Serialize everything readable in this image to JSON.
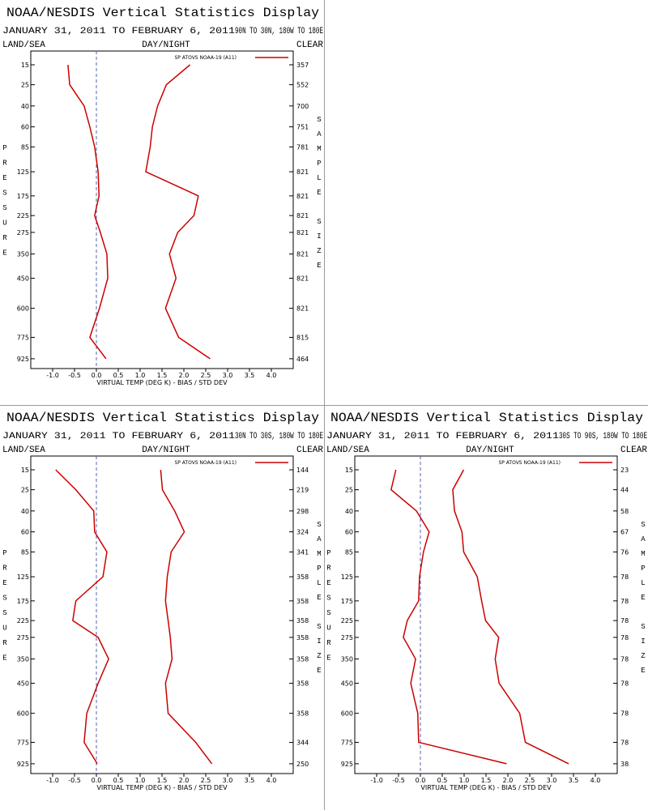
{
  "chart_data": [
    {
      "type": "line",
      "title": "NOAA/NESDIS Vertical Statistics Display",
      "date_range": "JANUARY 31, 2011 TO FEBRUARY 6, 2011",
      "region": "90N TO 30N, 180W TO 180E",
      "land_sea": "LAND/SEA",
      "day_night": "DAY/NIGHT",
      "sky": "CLEAR",
      "ylabel": "PRESSURE",
      "y2label": "SAMPLE SIZE",
      "xlabel": "VIRTUAL TEMP (DEG K) - BIAS / STD DEV",
      "y": [
        15,
        25,
        40,
        60,
        85,
        125,
        175,
        225,
        275,
        350,
        450,
        600,
        775,
        925
      ],
      "sample_size": [
        357,
        552,
        700,
        751,
        781,
        821,
        821,
        821,
        821,
        821,
        821,
        821,
        815,
        464
      ],
      "series": [
        {
          "name": "SP ATOVS NOAA-19 (A11)",
          "color": "#cc0000",
          "values": [
            -0.65,
            -0.61,
            -0.28,
            -0.15,
            -0.04,
            0.04,
            0.06,
            -0.04,
            0.09,
            0.24,
            0.26,
            0.07,
            -0.15,
            0.22
          ]
        },
        {
          "color": "#cc0000",
          "values": [
            2.14,
            1.6,
            1.4,
            1.28,
            1.23,
            1.13,
            2.33,
            2.23,
            1.86,
            1.67,
            1.82,
            1.58,
            1.88,
            2.6
          ]
        }
      ],
      "xlim": [
        -1.5,
        4.5
      ],
      "xticks": [
        {
          "value": -1,
          "label": "-1.0"
        },
        {
          "value": -0.5,
          "label": "-0.5"
        },
        {
          "value": 0,
          "label": "0.0"
        },
        {
          "value": 0.5,
          "label": "0.5"
        },
        {
          "value": 1,
          "label": "1.0"
        },
        {
          "value": 1.5,
          "label": "1.5"
        },
        {
          "value": 2,
          "label": "2.0"
        },
        {
          "value": 2.5,
          "label": "2.5"
        },
        {
          "value": 3,
          "label": "3.0"
        },
        {
          "value": 3.5,
          "label": "3.5"
        },
        {
          "value": 4,
          "label": "4.0"
        }
      ],
      "ylim": [
        10,
        1000
      ],
      "yscale": "power",
      "yexponent": 0.3,
      "yinverted": true,
      "zero_line": true
    },
    {
      "type": "line",
      "title": "NOAA/NESDIS Vertical Statistics Display",
      "date_range": "JANUARY 31, 2011 TO FEBRUARY 6, 2011",
      "region": "30N TO 30S, 180W TO 180E",
      "land_sea": "LAND/SEA",
      "day_night": "DAY/NIGHT",
      "sky": "CLEAR",
      "ylabel": "PRESSURE",
      "y2label": "SAMPLE SIZE",
      "xlabel": "VIRTUAL TEMP (DEG K) - BIAS / STD DEV",
      "y": [
        15,
        25,
        40,
        60,
        85,
        125,
        175,
        225,
        275,
        350,
        450,
        600,
        775,
        925
      ],
      "sample_size": [
        144,
        219,
        298,
        324,
        341,
        358,
        358,
        358,
        358,
        358,
        358,
        358,
        344,
        250
      ],
      "series": [
        {
          "name": "SP ATOVS NOAA-19 (A11)",
          "color": "#cc0000",
          "values": [
            -0.93,
            -0.47,
            -0.06,
            -0.04,
            0.24,
            0.15,
            -0.47,
            -0.54,
            0.04,
            0.28,
            0.04,
            -0.22,
            -0.28,
            0.02
          ]
        },
        {
          "color": "#cc0000",
          "values": [
            1.47,
            1.51,
            1.79,
            2.01,
            1.71,
            1.62,
            1.58,
            1.64,
            1.69,
            1.73,
            1.58,
            1.64,
            2.27,
            2.64
          ]
        }
      ],
      "xlim": [
        -1.5,
        4.5
      ],
      "xticks": [
        {
          "value": -1,
          "label": "-1.0"
        },
        {
          "value": -0.5,
          "label": "-0.5"
        },
        {
          "value": 0,
          "label": "0.0"
        },
        {
          "value": 0.5,
          "label": "0.5"
        },
        {
          "value": 1,
          "label": "1.0"
        },
        {
          "value": 1.5,
          "label": "1.5"
        },
        {
          "value": 2,
          "label": "2.0"
        },
        {
          "value": 2.5,
          "label": "2.5"
        },
        {
          "value": 3,
          "label": "3.0"
        },
        {
          "value": 3.5,
          "label": "3.5"
        },
        {
          "value": 4,
          "label": "4.0"
        }
      ],
      "ylim": [
        10,
        1000
      ],
      "yscale": "power",
      "yexponent": 0.3,
      "yinverted": true,
      "zero_line": true
    },
    {
      "type": "line",
      "title": "NOAA/NESDIS Vertical Statistics Display",
      "date_range": "JANUARY 31, 2011 TO FEBRUARY 6, 2011",
      "region": "30S TO 90S, 180W TO 180E",
      "land_sea": "LAND/SEA",
      "day_night": "DAY/NIGHT",
      "sky": "CLEAR",
      "ylabel": "PRESSURE",
      "y2label": "SAMPLE SIZE",
      "xlabel": "VIRTUAL TEMP (DEG K) - BIAS / STD DEV",
      "y": [
        15,
        25,
        40,
        60,
        85,
        125,
        175,
        225,
        275,
        350,
        450,
        600,
        775,
        925
      ],
      "sample_size": [
        23,
        44,
        58,
        67,
        76,
        78,
        78,
        78,
        78,
        78,
        78,
        78,
        78,
        38
      ],
      "series": [
        {
          "name": "SP ATOVS NOAA-19 (A11)",
          "color": "#cc0000",
          "values": [
            -0.56,
            -0.67,
            -0.09,
            0.2,
            0.07,
            -0.02,
            -0.04,
            -0.3,
            -0.39,
            -0.11,
            -0.22,
            -0.06,
            -0.04,
            1.97
          ]
        },
        {
          "color": "#cc0000",
          "values": [
            0.99,
            0.74,
            0.78,
            0.95,
            0.99,
            1.3,
            1.4,
            1.49,
            1.79,
            1.71,
            1.8,
            2.27,
            2.4,
            3.39
          ]
        }
      ],
      "xlim": [
        -1.5,
        4.5
      ],
      "xticks": [
        {
          "value": -1,
          "label": "-1.0"
        },
        {
          "value": -0.5,
          "label": "-0.5"
        },
        {
          "value": 0,
          "label": "0.0"
        },
        {
          "value": 0.5,
          "label": "0.5"
        },
        {
          "value": 1,
          "label": "1.0"
        },
        {
          "value": 1.5,
          "label": "1.5"
        },
        {
          "value": 2,
          "label": "2.0"
        },
        {
          "value": 2.5,
          "label": "2.5"
        },
        {
          "value": 3,
          "label": "3.0"
        },
        {
          "value": 3.5,
          "label": "3.5"
        },
        {
          "value": 4,
          "label": "4.0"
        }
      ],
      "ylim": [
        10,
        1000
      ],
      "yscale": "power",
      "yexponent": 0.3,
      "yinverted": true,
      "zero_line": true
    }
  ]
}
